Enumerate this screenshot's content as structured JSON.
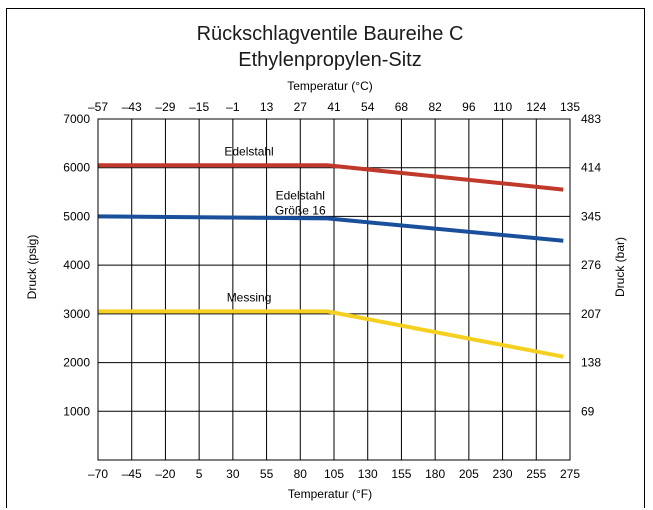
{
  "chart_data": {
    "type": "line",
    "title": [
      "Rückschlagventile Baureihe C",
      "Ethylenpropylen-Sitz"
    ],
    "x_top_label": "Temperatur (°C)",
    "x_bottom_label": "Temperatur (°F)",
    "y_left_label": "Druck (psig)",
    "y_right_label": "Druck (bar)",
    "x_bottom_ticks": [
      "–70",
      "–45",
      "–20",
      "5",
      "30",
      "55",
      "80",
      "105",
      "130",
      "155",
      "180",
      "205",
      "230",
      "255",
      "275"
    ],
    "x_top_ticks": [
      "–57",
      "–43",
      "–29",
      "–15",
      "–1",
      "13",
      "27",
      "41",
      "54",
      "68",
      "82",
      "96",
      "110",
      "124",
      "135"
    ],
    "y_left_ticks": [
      "1000",
      "2000",
      "3000",
      "4000",
      "5000",
      "6000",
      "7000"
    ],
    "y_right_ticks": [
      "69",
      "138",
      "207",
      "276",
      "345",
      "414",
      "483"
    ],
    "xlim": [
      -70,
      275
    ],
    "ylim": [
      0,
      7000
    ],
    "grid": true,
    "series": [
      {
        "name": "Edelstahl",
        "color": "#c0392b",
        "x": [
          -70,
          100,
          275
        ],
        "y": [
          6050,
          6050,
          5550
        ]
      },
      {
        "name": "Edelstahl Größe 16",
        "color": "#1a4f9c",
        "x": [
          -70,
          100,
          275
        ],
        "y": [
          5000,
          4960,
          4500
        ]
      },
      {
        "name": "Messing",
        "color": "#f5d020",
        "x": [
          -70,
          100,
          275
        ],
        "y": [
          3050,
          3050,
          2120
        ]
      }
    ],
    "annotations": [
      {
        "lines": [
          "Edelstahl"
        ],
        "x": 42,
        "y": 6250
      },
      {
        "lines": [
          "Edelstahl",
          "Größe 16"
        ],
        "x": 80,
        "y": 5350
      },
      {
        "lines": [
          "Messing"
        ],
        "x": 42,
        "y": 3250
      }
    ]
  }
}
